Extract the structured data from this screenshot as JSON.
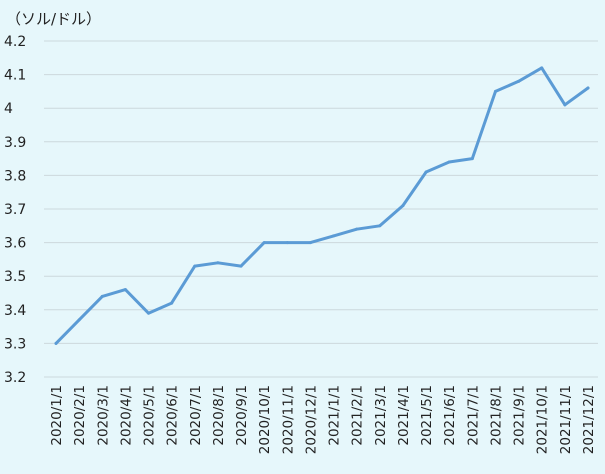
{
  "chart_data": {
    "type": "line",
    "ylabel": "（ソル/ドル）",
    "ylim": [
      3.2,
      4.2
    ],
    "yticks": [
      "3.2",
      "3.3",
      "3.4",
      "3.5",
      "3.6",
      "3.7",
      "3.8",
      "3.9",
      "4",
      "4.1",
      "4.2"
    ],
    "grid": true,
    "categories": [
      "2020/1/1",
      "2020/2/1",
      "2020/3/1",
      "2020/4/1",
      "2020/5/1",
      "2020/6/1",
      "2020/7/1",
      "2020/8/1",
      "2020/9/1",
      "2020/10/1",
      "2020/11/1",
      "2020/12/1",
      "2021/1/1",
      "2021/2/1",
      "2021/3/1",
      "2021/4/1",
      "2021/5/1",
      "2021/6/1",
      "2021/7/1",
      "2021/8/1",
      "2021/9/1",
      "2021/10/1",
      "2021/11/1",
      "2021/12/1"
    ],
    "series": [
      {
        "values": [
          3.3,
          3.37,
          3.44,
          3.46,
          3.39,
          3.42,
          3.53,
          3.54,
          3.53,
          3.6,
          3.6,
          3.6,
          3.62,
          3.64,
          3.65,
          3.71,
          3.81,
          3.84,
          3.85,
          4.05,
          4.08,
          4.12,
          4.01,
          4.06
        ]
      }
    ],
    "colors": {
      "line": "#5b9bd5",
      "background": "#e6f7fb",
      "grid": "#ccd8dc"
    }
  }
}
